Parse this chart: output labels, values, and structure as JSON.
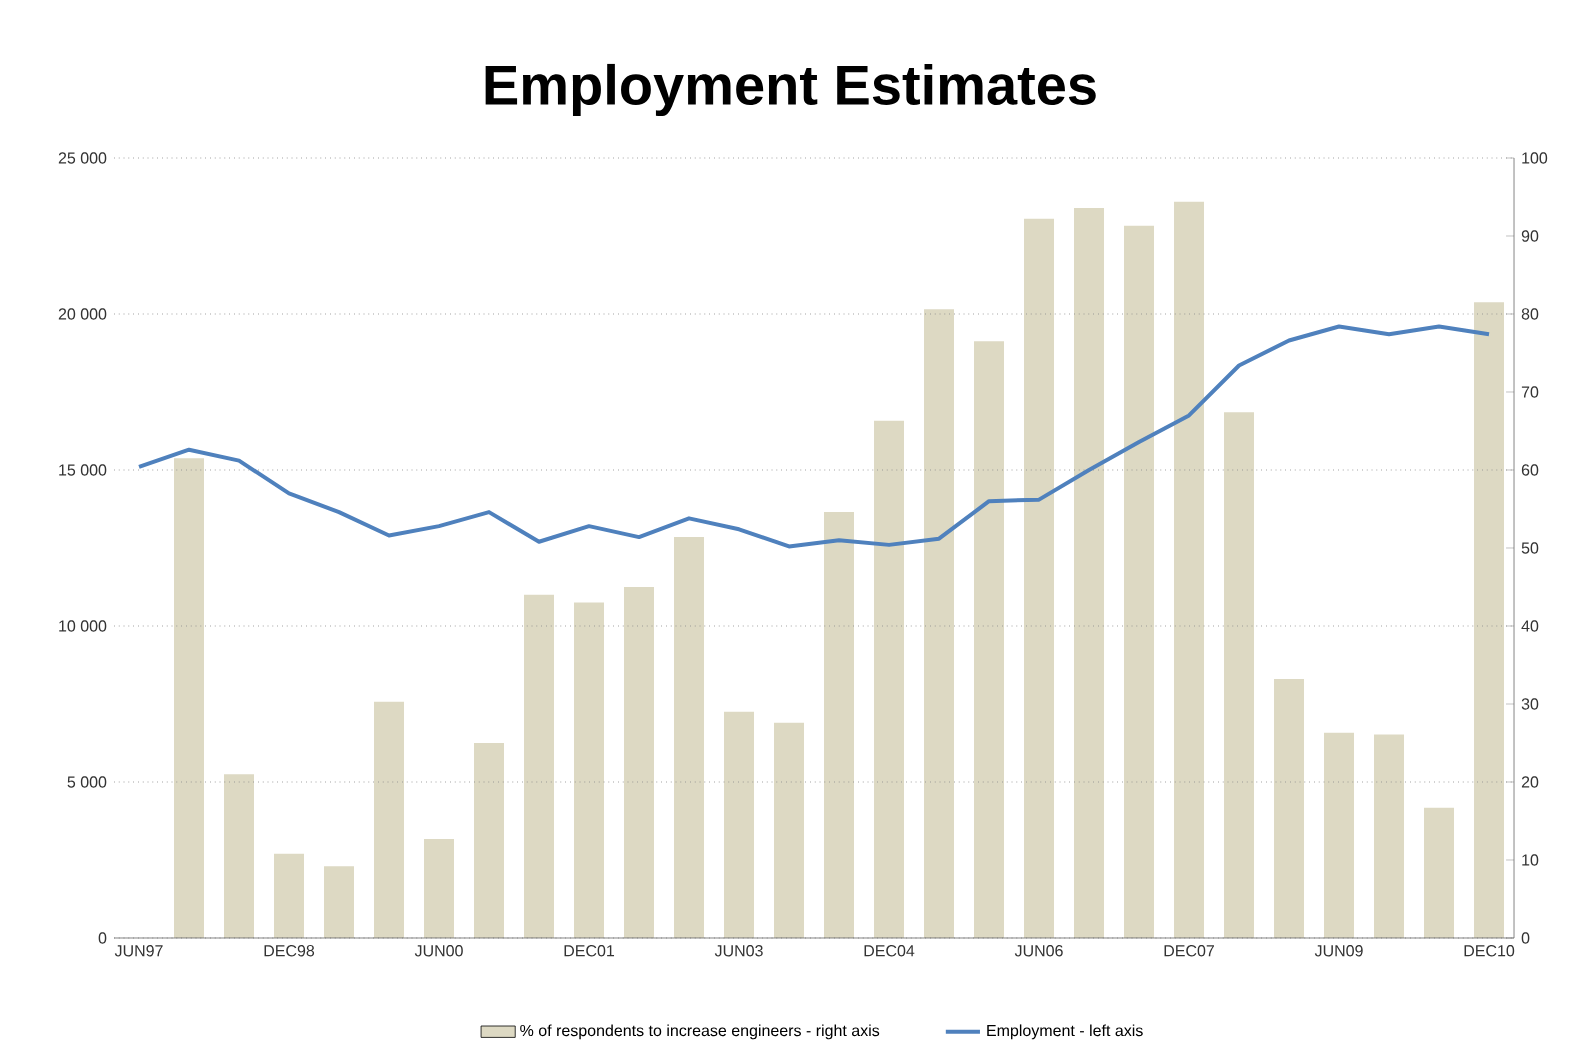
{
  "chart_data": {
    "type": "bar",
    "title": "Employment Estimates",
    "categories": [
      "JUN97",
      null,
      null,
      "DEC98",
      null,
      null,
      "JUN00",
      null,
      null,
      "DEC01",
      null,
      null,
      "JUN03",
      null,
      null,
      "DEC04",
      null,
      null,
      "JUN06",
      null,
      null,
      "DEC07",
      null,
      null,
      "JUN09",
      null,
      null,
      "DEC10"
    ],
    "series": [
      {
        "name": "% of respondents to increase engineers - right axis",
        "axis": "y2",
        "color": "#ddd9c3",
        "values": [
          null,
          61.5,
          21,
          10.8,
          9.2,
          30.3,
          12.7,
          25,
          44,
          43,
          45,
          51.4,
          29,
          27.6,
          54.6,
          66.3,
          80.6,
          76.5,
          92.2,
          93.6,
          91.3,
          94.4,
          67.4,
          33.2,
          26.3,
          26.1,
          16.7,
          81.5
        ]
      },
      {
        "name": "Employment - left axis",
        "type": "line",
        "axis": "y",
        "color": "#4f81bd",
        "values": [
          15100,
          15650,
          15300,
          14250,
          13650,
          12900,
          13200,
          13650,
          12700,
          13200,
          12850,
          13450,
          13100,
          12550,
          12750,
          12600,
          12800,
          14000,
          14050,
          15000,
          15900,
          16750,
          18350,
          19150,
          19600,
          19350,
          19600,
          19350
        ]
      }
    ],
    "ylim": [
      0,
      25000
    ],
    "yticks": [
      0,
      {
        "value": 5000,
        "label": "5 000"
      },
      {
        "value": 10000,
        "label": "10 000"
      },
      {
        "value": 15000,
        "label": "15 000"
      },
      {
        "value": 20000,
        "label": "20 000"
      },
      {
        "value": 25000,
        "label": "25 000"
      }
    ],
    "y2lim": [
      0,
      100
    ],
    "y2ticks": [
      0,
      10,
      20,
      30,
      40,
      50,
      60,
      70,
      80,
      90,
      100
    ],
    "grid": "y",
    "legend": "bottom"
  }
}
